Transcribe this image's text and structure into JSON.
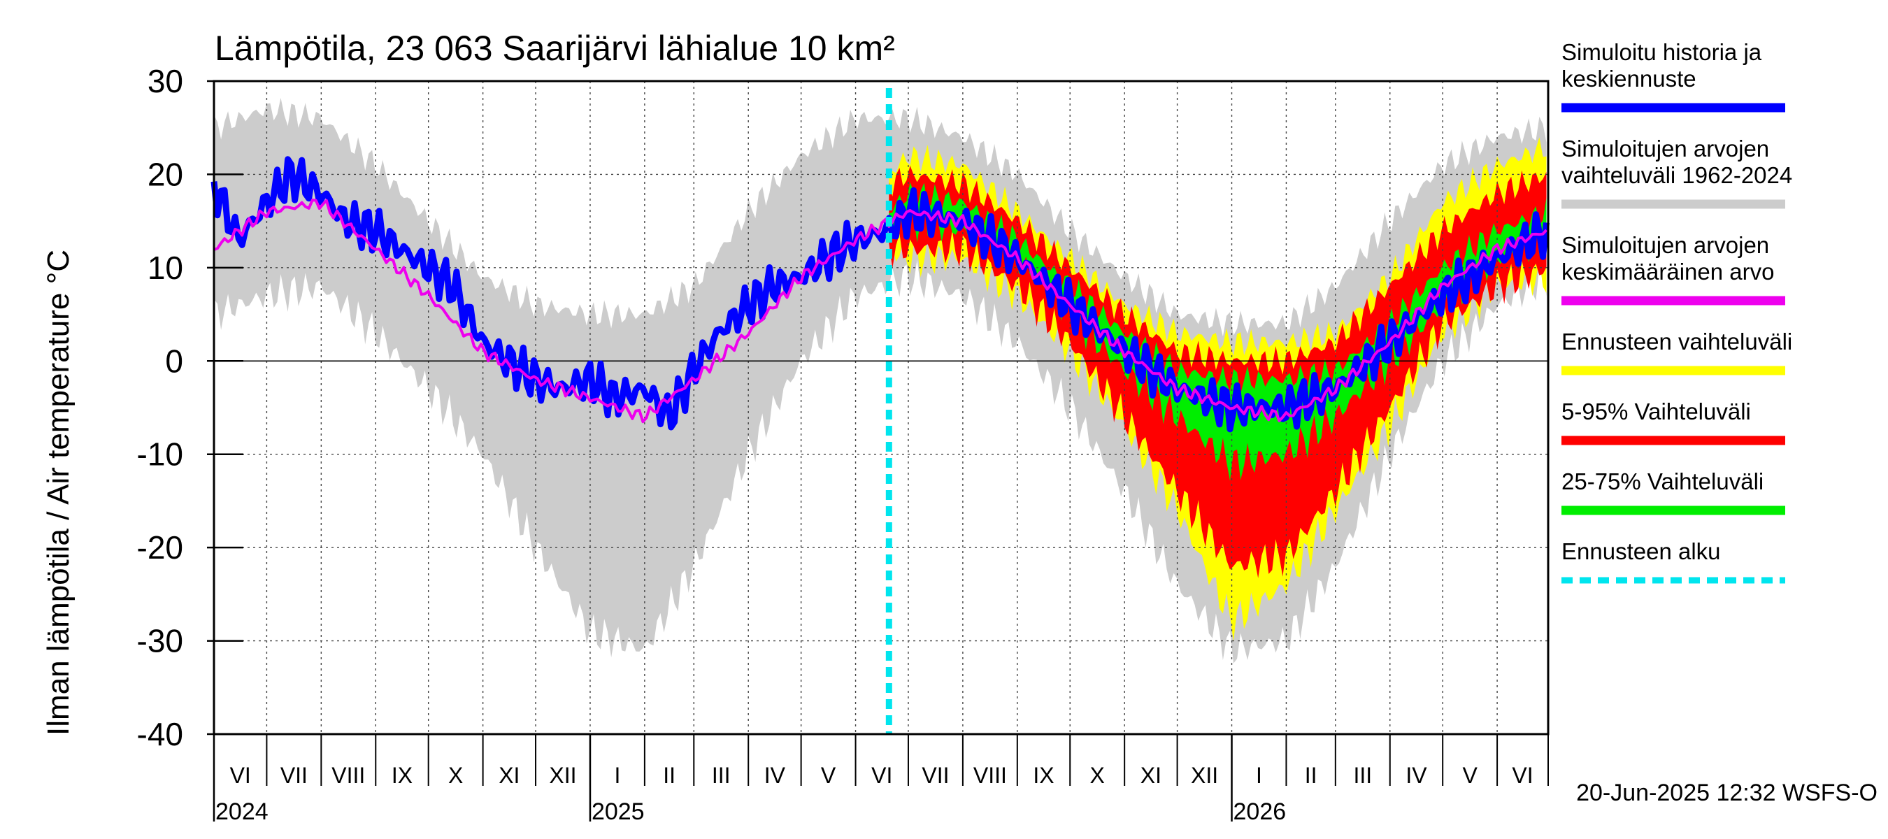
{
  "chart_data": {
    "type": "area",
    "title": "Lämpötila, 23 063 Saarijärvi lähialue 10 km²",
    "ylabel": "Ilman lämpötila / Air temperature   °C",
    "ylim": [
      -40,
      30
    ],
    "yticks": [
      30,
      20,
      10,
      0,
      -10,
      -20,
      -30,
      -40
    ],
    "ytick_labels": [
      "30",
      "20",
      "10",
      "0",
      "-10",
      "-20",
      "-30",
      "-40"
    ],
    "xlim": [
      "2024-06-01",
      "2026-06-30"
    ],
    "forecast_start": "2025-06-20",
    "months": [
      {
        "label": "VI",
        "start": "2024-06-01",
        "end": "2024-07-01"
      },
      {
        "label": "VII",
        "start": "2024-07-01",
        "end": "2024-08-01"
      },
      {
        "label": "VIII",
        "start": "2024-08-01",
        "end": "2024-09-01"
      },
      {
        "label": "IX",
        "start": "2024-09-01",
        "end": "2024-10-01"
      },
      {
        "label": "X",
        "start": "2024-10-01",
        "end": "2024-11-01"
      },
      {
        "label": "XI",
        "start": "2024-11-01",
        "end": "2024-12-01"
      },
      {
        "label": "XII",
        "start": "2024-12-01",
        "end": "2025-01-01"
      },
      {
        "label": "I",
        "start": "2025-01-01",
        "end": "2025-02-01"
      },
      {
        "label": "II",
        "start": "2025-02-01",
        "end": "2025-03-01"
      },
      {
        "label": "III",
        "start": "2025-03-01",
        "end": "2025-04-01"
      },
      {
        "label": "IV",
        "start": "2025-04-01",
        "end": "2025-05-01"
      },
      {
        "label": "V",
        "start": "2025-05-01",
        "end": "2025-06-01"
      },
      {
        "label": "VI",
        "start": "2025-06-01",
        "end": "2025-07-01"
      },
      {
        "label": "VII",
        "start": "2025-07-01",
        "end": "2025-08-01"
      },
      {
        "label": "VIII",
        "start": "2025-08-01",
        "end": "2025-09-01"
      },
      {
        "label": "IX",
        "start": "2025-09-01",
        "end": "2025-10-01"
      },
      {
        "label": "X",
        "start": "2025-10-01",
        "end": "2025-11-01"
      },
      {
        "label": "XI",
        "start": "2025-11-01",
        "end": "2025-12-01"
      },
      {
        "label": "XII",
        "start": "2025-12-01",
        "end": "2026-01-01"
      },
      {
        "label": "I",
        "start": "2026-01-01",
        "end": "2026-02-01"
      },
      {
        "label": "II",
        "start": "2026-02-01",
        "end": "2026-03-01"
      },
      {
        "label": "III",
        "start": "2026-03-01",
        "end": "2026-04-01"
      },
      {
        "label": "IV",
        "start": "2026-04-01",
        "end": "2026-05-01"
      },
      {
        "label": "V",
        "start": "2026-05-01",
        "end": "2026-06-01"
      },
      {
        "label": "VI",
        "start": "2026-06-01",
        "end": "2026-06-30"
      }
    ],
    "years": [
      {
        "label": "2024",
        "date": "2024-06-01"
      },
      {
        "label": "2025",
        "date": "2025-01-01"
      },
      {
        "label": "2026",
        "date": "2026-01-01"
      }
    ],
    "legend": [
      {
        "label": "Simuloitu historia ja\nkeskiennuste",
        "color": "#0000ff",
        "style": "solid"
      },
      {
        "label": "Simuloitujen arvojen\nvaihteluväli 1962-2024",
        "color": "#cccccc",
        "style": "solid"
      },
      {
        "label": "Simuloitujen arvojen\nkeskimääräinen arvo",
        "color": "#ee00ee",
        "style": "solid"
      },
      {
        "label": "Ennusteen vaihteluväli",
        "color": "#ffff00",
        "style": "solid"
      },
      {
        "label": "5-95% Vaihteluväli",
        "color": "#ff0000",
        "style": "solid"
      },
      {
        "label": "25-75% Vaihteluväli",
        "color": "#00ee00",
        "style": "solid"
      },
      {
        "label": "Ennusteen alku",
        "color": "#00e5ee",
        "style": "dashed"
      }
    ],
    "footer": "20-Jun-2025 12:32 WSFS-O",
    "series": [
      {
        "name": "Simuloitujen arvojen vaihteluväli 1962-2024",
        "kind": "band",
        "color": "#cccccc",
        "x": [
          "2024-06-01",
          "2024-07-01",
          "2024-08-01",
          "2024-09-01",
          "2024-10-01",
          "2024-11-01",
          "2024-12-01",
          "2025-01-01",
          "2025-02-01",
          "2025-03-01",
          "2025-04-01",
          "2025-05-01",
          "2025-06-01",
          "2025-07-01",
          "2025-08-01",
          "2025-09-01",
          "2025-10-01",
          "2025-11-01",
          "2025-12-01",
          "2026-01-01",
          "2026-02-01",
          "2026-03-01",
          "2026-04-01",
          "2026-05-01",
          "2026-06-01",
          "2026-06-30"
        ],
        "lower": [
          5,
          7,
          8,
          3,
          -3,
          -10,
          -20,
          -29,
          -31,
          -22,
          -10,
          0,
          7,
          9,
          7,
          2,
          -5,
          -14,
          -24,
          -31,
          -30,
          -22,
          -10,
          0,
          6,
          9
        ],
        "upper": [
          25,
          27,
          26,
          21,
          15,
          9,
          6,
          5,
          5,
          8,
          16,
          22,
          26,
          26,
          24,
          20,
          14,
          9,
          5,
          4,
          4,
          8,
          15,
          21,
          24,
          25
        ]
      },
      {
        "name": "Ennusteen vaihteluväli",
        "kind": "band",
        "color": "#ffff00",
        "x": [
          "2025-06-20",
          "2025-07-01",
          "2025-08-01",
          "2025-09-01",
          "2025-10-01",
          "2025-11-01",
          "2025-12-01",
          "2026-01-01",
          "2026-02-01",
          "2026-03-01",
          "2026-04-01",
          "2026-05-01",
          "2026-06-01",
          "2026-06-30"
        ],
        "lower": [
          12,
          11,
          11,
          7,
          1,
          -7,
          -16,
          -28,
          -24,
          -16,
          -7,
          3,
          8,
          9
        ],
        "upper": [
          20,
          22,
          21,
          16,
          11,
          6,
          3,
          2,
          2,
          3,
          9,
          17,
          21,
          23
        ]
      },
      {
        "name": "5-95% Vaihteluväli",
        "kind": "band",
        "color": "#ff0000",
        "x": [
          "2025-06-20",
          "2025-07-01",
          "2025-08-01",
          "2025-09-01",
          "2025-10-01",
          "2025-11-01",
          "2025-12-01",
          "2026-01-01",
          "2026-02-01",
          "2026-03-01",
          "2026-04-01",
          "2026-05-01",
          "2026-06-01",
          "2026-06-30"
        ],
        "lower": [
          12,
          12,
          12,
          8,
          2,
          -6,
          -14,
          -22,
          -21,
          -14,
          -5,
          4,
          8,
          10
        ],
        "upper": [
          19,
          20,
          19,
          15,
          10,
          5,
          1,
          0,
          0,
          2,
          8,
          14,
          18,
          20
        ]
      },
      {
        "name": "25-75% Vaihteluväli",
        "kind": "band",
        "color": "#00ee00",
        "x": [
          "2025-06-20",
          "2025-07-01",
          "2025-08-01",
          "2025-09-01",
          "2025-10-01",
          "2025-11-01",
          "2025-12-01",
          "2026-01-01",
          "2026-02-01",
          "2026-03-01",
          "2026-04-01",
          "2026-05-01",
          "2026-06-01",
          "2026-06-30"
        ],
        "lower": [
          14,
          15,
          14,
          11,
          5,
          -1,
          -6,
          -11,
          -10,
          -6,
          0,
          6,
          11,
          13
        ],
        "upper": [
          16,
          18,
          17,
          13,
          8,
          3,
          -1,
          -2,
          -2,
          -1,
          4,
          10,
          14,
          16
        ]
      },
      {
        "name": "Simuloitu historia ja keskiennuste",
        "kind": "line",
        "color": "#0000ff",
        "x": [
          "2024-06-01",
          "2024-06-15",
          "2024-07-01",
          "2024-07-15",
          "2024-08-01",
          "2024-08-15",
          "2024-09-01",
          "2024-09-15",
          "2024-10-01",
          "2024-10-15",
          "2024-11-01",
          "2024-11-15",
          "2024-12-01",
          "2024-12-15",
          "2025-01-01",
          "2025-01-15",
          "2025-02-01",
          "2025-02-15",
          "2025-03-01",
          "2025-03-15",
          "2025-04-01",
          "2025-04-15",
          "2025-05-01",
          "2025-05-15",
          "2025-06-01",
          "2025-06-20",
          "2025-07-01",
          "2025-08-01",
          "2025-09-01",
          "2025-10-01",
          "2025-11-01",
          "2025-12-01",
          "2026-01-01",
          "2026-02-01",
          "2026-03-01",
          "2026-04-01",
          "2026-05-01",
          "2026-06-01",
          "2026-06-30"
        ],
        "values": [
          19,
          13,
          17,
          20,
          18,
          15,
          14,
          12,
          10,
          8,
          2,
          0,
          -2,
          -3,
          -2,
          -4,
          -3,
          -6,
          -1,
          3,
          6,
          8,
          9,
          11,
          13,
          14,
          16,
          15,
          11,
          6,
          1,
          -3,
          -5,
          -5,
          -3,
          2,
          7,
          11,
          14
        ]
      },
      {
        "name": "Simuloitujen arvojen keskimääräinen arvo",
        "kind": "line",
        "color": "#ee00ee",
        "x": [
          "2024-06-01",
          "2024-07-01",
          "2024-08-01",
          "2024-09-01",
          "2024-10-01",
          "2024-11-01",
          "2024-12-01",
          "2025-01-01",
          "2025-02-01",
          "2025-03-01",
          "2025-04-01",
          "2025-05-01",
          "2025-06-01",
          "2025-07-01",
          "2025-08-01",
          "2025-09-01",
          "2025-10-01",
          "2025-11-01",
          "2025-12-01",
          "2026-01-01",
          "2026-02-01",
          "2026-03-01",
          "2026-04-01",
          "2026-05-01",
          "2026-06-01",
          "2026-06-30"
        ],
        "values": [
          12,
          16,
          17,
          12,
          7,
          1,
          -2,
          -4,
          -6,
          -2,
          3,
          9,
          13,
          16,
          15,
          11,
          6,
          1,
          -3,
          -5,
          -6,
          -3,
          2,
          8,
          12,
          14
        ]
      }
    ]
  }
}
